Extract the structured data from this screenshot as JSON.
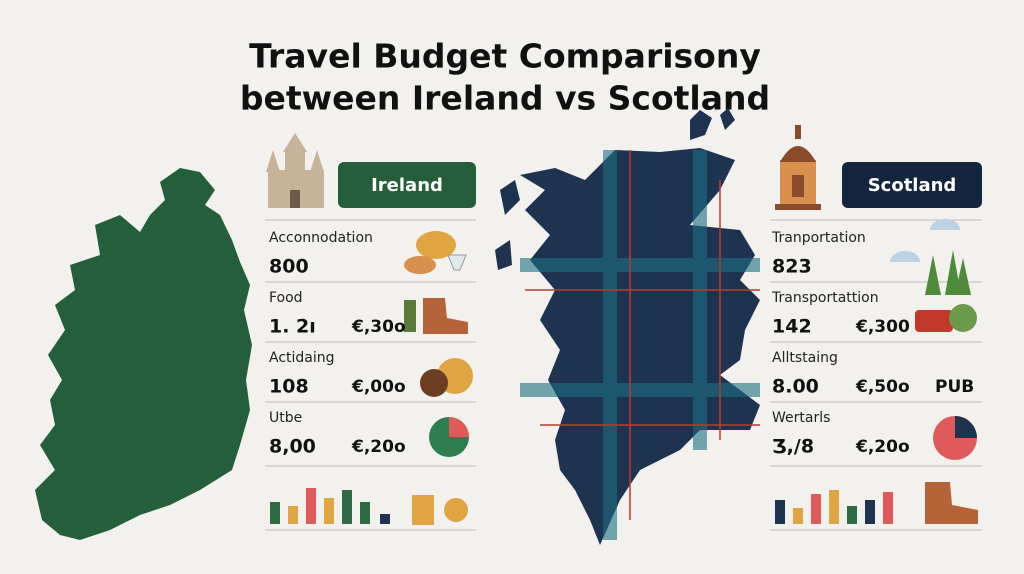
{
  "title": [
    "Travel Budget Comparisony",
    "between Ireland vs Scotland"
  ],
  "ireland": {
    "label": "Ireland",
    "rows": [
      {
        "label": "Acconnodation",
        "values": [
          "800"
        ]
      },
      {
        "label": "Food",
        "values": [
          "1. 2ı",
          "€,30o"
        ]
      },
      {
        "label": "Actidaing",
        "values": [
          "108",
          "€,00o"
        ]
      },
      {
        "label": "Utbe",
        "values": [
          "8,00",
          "€,20o"
        ]
      }
    ]
  },
  "scotland": {
    "label": "Scotland",
    "rows": [
      {
        "label": "Tranportation",
        "values": [
          "823"
        ]
      },
      {
        "label": "Transportattion",
        "values": [
          "142",
          "€,300"
        ]
      },
      {
        "label": "Alltstaing",
        "values": [
          "8.00",
          "€,50o",
          "PUB"
        ]
      },
      {
        "label": "Wertarls",
        "values": [
          "Ʒ,/8",
          "€,20o"
        ]
      }
    ]
  }
}
